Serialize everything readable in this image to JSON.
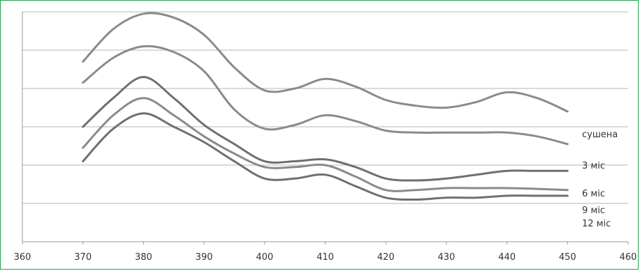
{
  "chart_data": {
    "type": "line",
    "title": "",
    "xlabel": "",
    "ylabel": "",
    "xlim": [
      360,
      460
    ],
    "ylim": [
      0,
      6
    ],
    "x_ticks": [
      "360",
      "370",
      "380",
      "390",
      "400",
      "410",
      "420",
      "430",
      "440",
      "450",
      "460"
    ],
    "y_ticks_shown": false,
    "grid": "horizontal",
    "x": [
      370,
      375,
      380,
      385,
      390,
      395,
      400,
      405,
      410,
      415,
      420,
      425,
      430,
      435,
      440,
      445,
      450
    ],
    "series": [
      {
        "name": "сушена",
        "color": "#8a8a8a",
        "values": [
          4.7,
          5.55,
          5.95,
          5.85,
          5.4,
          4.55,
          3.95,
          4.0,
          4.25,
          4.05,
          3.7,
          3.55,
          3.5,
          3.65,
          3.9,
          3.75,
          3.4
        ]
      },
      {
        "name": "3 міс",
        "color": "#8a8a8a",
        "values": [
          4.15,
          4.8,
          5.1,
          4.95,
          4.45,
          3.45,
          2.95,
          3.05,
          3.3,
          3.15,
          2.9,
          2.85,
          2.85,
          2.85,
          2.85,
          2.75,
          2.55
        ]
      },
      {
        "name": "6 міс",
        "color": "#6f6f6f",
        "values": [
          3.0,
          3.75,
          4.3,
          3.75,
          3.05,
          2.55,
          2.1,
          2.1,
          2.15,
          1.95,
          1.65,
          1.6,
          1.65,
          1.75,
          1.85,
          1.85,
          1.85
        ]
      },
      {
        "name": "9 міс",
        "color": "#8a8a8a",
        "values": [
          2.45,
          3.3,
          3.75,
          3.3,
          2.75,
          2.3,
          1.95,
          1.95,
          2.0,
          1.7,
          1.35,
          1.35,
          1.4,
          1.4,
          1.4,
          1.38,
          1.35
        ]
      },
      {
        "name": "12 міс",
        "color": "#6f6f6f",
        "values": [
          2.1,
          2.95,
          3.35,
          3.0,
          2.6,
          2.1,
          1.65,
          1.65,
          1.75,
          1.45,
          1.15,
          1.1,
          1.15,
          1.15,
          1.2,
          1.2,
          1.2
        ]
      }
    ]
  }
}
